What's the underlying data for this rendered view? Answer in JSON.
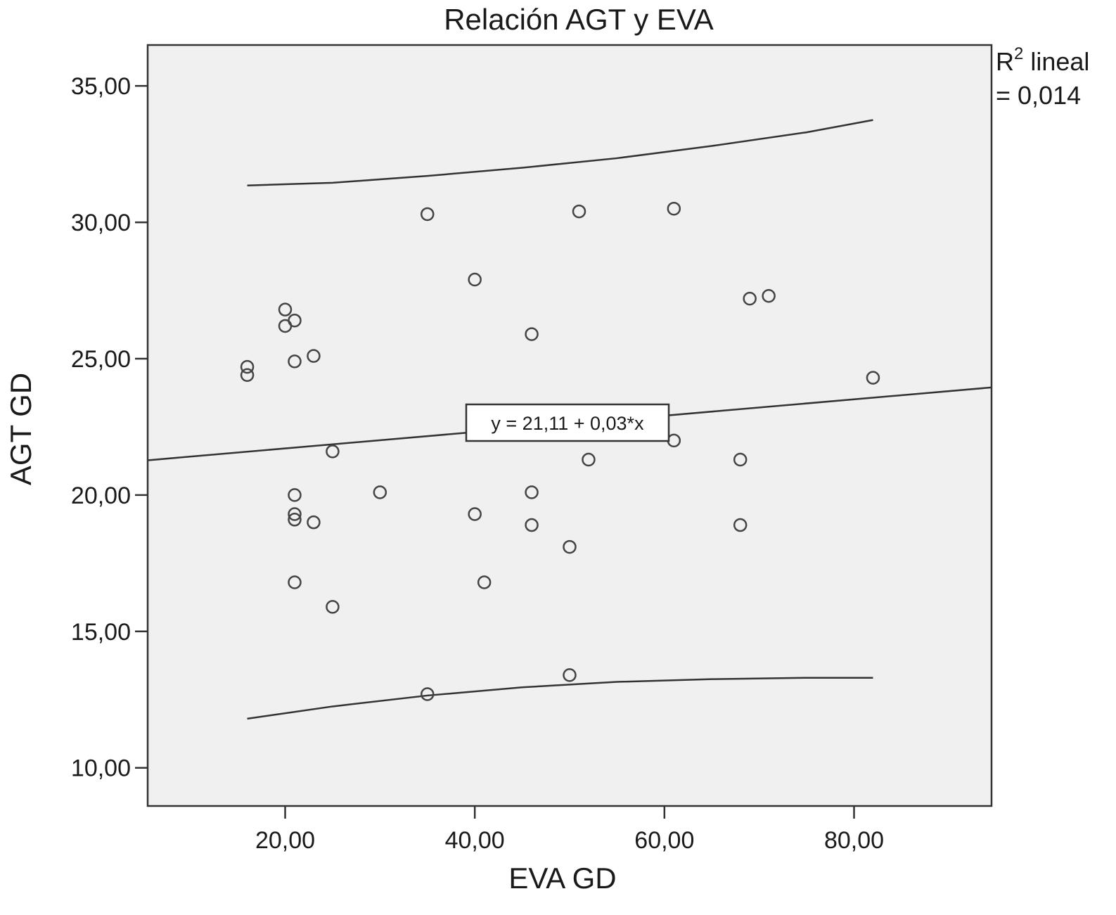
{
  "chart_data": {
    "type": "scatter",
    "title": "Relación AGT y EVA",
    "xlabel": "EVA GD",
    "ylabel": "AGT GD",
    "xlim": [
      5.5,
      94.5
    ],
    "ylim": [
      8.6,
      36.5
    ],
    "x_ticks": [
      {
        "value": 20,
        "label": "20,00"
      },
      {
        "value": 40,
        "label": "40,00"
      },
      {
        "value": 60,
        "label": "60,00"
      },
      {
        "value": 80,
        "label": "80,00"
      }
    ],
    "y_ticks": [
      {
        "value": 10,
        "label": "10,00"
      },
      {
        "value": 15,
        "label": "15,00"
      },
      {
        "value": 20,
        "label": "20,00"
      },
      {
        "value": 25,
        "label": "25,00"
      },
      {
        "value": 30,
        "label": "30,00"
      },
      {
        "value": 35,
        "label": "35,00"
      }
    ],
    "grid": false,
    "points": [
      {
        "x": 16,
        "y": 24.7
      },
      {
        "x": 16,
        "y": 24.4
      },
      {
        "x": 20,
        "y": 26.8
      },
      {
        "x": 20,
        "y": 26.2
      },
      {
        "x": 21,
        "y": 26.4
      },
      {
        "x": 21,
        "y": 24.9
      },
      {
        "x": 23,
        "y": 25.1
      },
      {
        "x": 21,
        "y": 20.0
      },
      {
        "x": 21,
        "y": 19.3
      },
      {
        "x": 21,
        "y": 19.1
      },
      {
        "x": 23,
        "y": 19.0
      },
      {
        "x": 21,
        "y": 16.8
      },
      {
        "x": 25,
        "y": 21.6
      },
      {
        "x": 25,
        "y": 15.9
      },
      {
        "x": 30,
        "y": 20.1
      },
      {
        "x": 35,
        "y": 30.3
      },
      {
        "x": 35,
        "y": 12.7
      },
      {
        "x": 40,
        "y": 27.9
      },
      {
        "x": 40,
        "y": 19.3
      },
      {
        "x": 41,
        "y": 16.8
      },
      {
        "x": 46,
        "y": 25.9
      },
      {
        "x": 46,
        "y": 20.1
      },
      {
        "x": 46,
        "y": 18.9
      },
      {
        "x": 50,
        "y": 18.1
      },
      {
        "x": 50,
        "y": 13.4
      },
      {
        "x": 51,
        "y": 30.4
      },
      {
        "x": 52,
        "y": 21.3
      },
      {
        "x": 61,
        "y": 30.5
      },
      {
        "x": 61,
        "y": 22.0
      },
      {
        "x": 68,
        "y": 21.3
      },
      {
        "x": 68,
        "y": 18.9
      },
      {
        "x": 69,
        "y": 27.2
      },
      {
        "x": 71,
        "y": 27.3
      },
      {
        "x": 82,
        "y": 24.3
      }
    ],
    "fit_line": {
      "intercept": 21.11,
      "slope": 0.03,
      "x_range": [
        5.5,
        94.5
      ]
    },
    "confidence_band_upper": [
      {
        "x": 16,
        "y": 31.35
      },
      {
        "x": 25,
        "y": 31.45
      },
      {
        "x": 35,
        "y": 31.7
      },
      {
        "x": 45,
        "y": 32.0
      },
      {
        "x": 55,
        "y": 32.35
      },
      {
        "x": 65,
        "y": 32.8
      },
      {
        "x": 75,
        "y": 33.3
      },
      {
        "x": 82,
        "y": 33.75
      }
    ],
    "confidence_band_lower": [
      {
        "x": 16,
        "y": 11.8
      },
      {
        "x": 25,
        "y": 12.25
      },
      {
        "x": 35,
        "y": 12.65
      },
      {
        "x": 45,
        "y": 12.95
      },
      {
        "x": 55,
        "y": 13.15
      },
      {
        "x": 65,
        "y": 13.25
      },
      {
        "x": 75,
        "y": 13.3
      },
      {
        "x": 82,
        "y": 13.3
      }
    ],
    "equation_label": "y = 21,11 + 0,03*x",
    "r2_label_line1": "R",
    "r2_superscript": "2",
    "r2_label_line1_suffix": " lineal",
    "r2_label_line2": "= 0,014",
    "colors": {
      "plot_background": "#f0f0f0",
      "frame": "#333333",
      "marker_stroke": "#444444",
      "line": "#333333"
    }
  }
}
